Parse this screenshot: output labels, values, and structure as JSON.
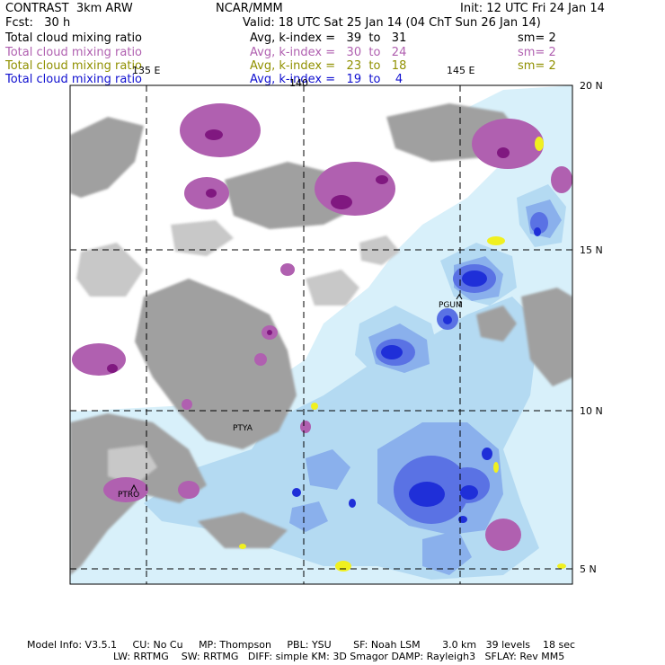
{
  "header": {
    "model": "CONTRAST  3km ARW",
    "org": "NCAR/MMM",
    "init": "Init: 12 UTC Fri 24 Jan 14",
    "fcst": "Fcst:   30 h",
    "valid": "Valid: 18 UTC Sat 25 Jan 14 (04 ChT Sun 26 Jan 14)"
  },
  "legend": [
    {
      "name": "Total cloud mixing ratio",
      "range": "Avg, k-index =   39  to   31",
      "sm": "sm= 2",
      "color": "#000000"
    },
    {
      "name": "Total cloud mixing ratio",
      "range": "Avg, k-index =   30  to   24",
      "sm": "sm= 2",
      "color": "#b060b0"
    },
    {
      "name": "Total cloud mixing ratio",
      "range": "Avg, k-index =   23  to   18",
      "sm": "sm= 2",
      "color": "#909000"
    },
    {
      "name": "Total cloud mixing ratio",
      "range": "Avg, k-index =   19  to    4",
      "sm": "",
      "color": "#1010d0"
    }
  ],
  "map": {
    "lon_labels": [
      "135 E",
      "140",
      "145 E"
    ],
    "lat_labels": [
      "20 N",
      "15 N",
      "10 N",
      "5 N"
    ],
    "stations": [
      "PGUM",
      "PTYA",
      "PTRO"
    ],
    "colors": {
      "gray": "#a0a0a0",
      "light_gray": "#c8c8c8",
      "magenta": "#b060b0",
      "dark_magenta": "#801880",
      "pale_blue": "#d8f0fa",
      "light_blue": "#b4daf2",
      "mid_blue": "#8ab0ec",
      "blue": "#5a72e4",
      "deep_blue": "#1f2fd8",
      "yellow": "#f0f020"
    }
  },
  "footer": {
    "line1": "Model Info: V3.5.1     CU: No Cu     MP: Thompson     PBL: YSU       SF: Noah LSM       3.0 km   39 levels    18 sec",
    "line2": "LW: RRTMG    SW: RRTMG   DIFF: simple KM: 3D Smagor DAMP: Rayleigh3   SFLAY: Rev MM5"
  }
}
